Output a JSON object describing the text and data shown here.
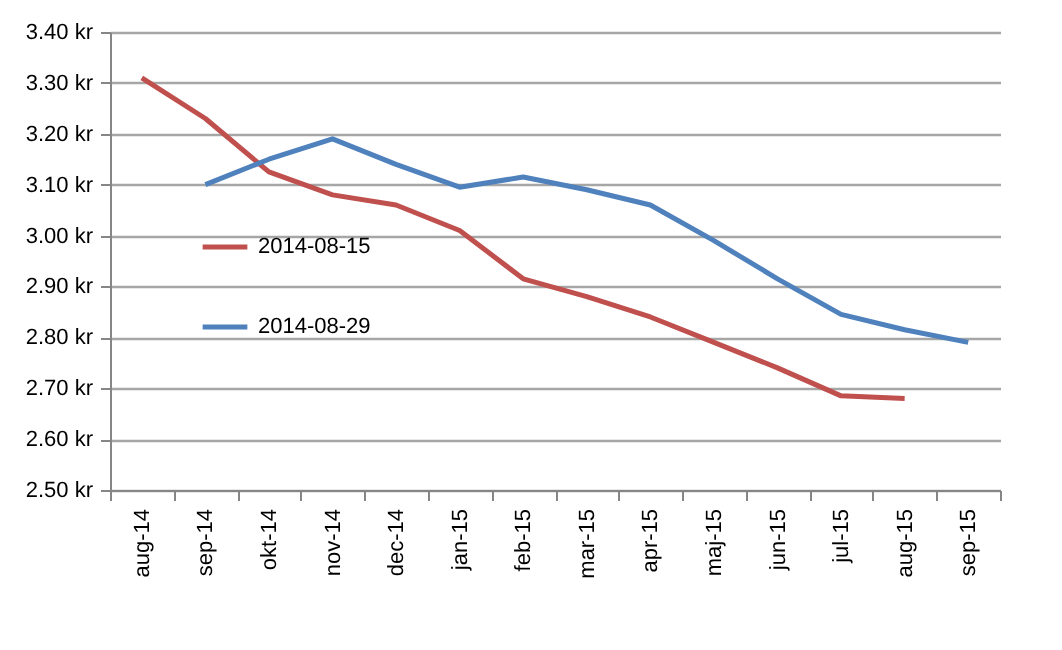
{
  "chart_data": {
    "type": "line",
    "categories": [
      "aug-14",
      "sep-14",
      "okt-14",
      "nov-14",
      "dec-14",
      "jan-15",
      "feb-15",
      "mar-15",
      "apr-15",
      "maj-15",
      "jun-15",
      "jul-15",
      "aug-15",
      "sep-15"
    ],
    "series": [
      {
        "name": "2014-08-15",
        "color": "#c0504d",
        "values": [
          3.31,
          3.23,
          3.125,
          3.08,
          3.06,
          3.01,
          2.915,
          2.88,
          2.84,
          2.79,
          2.74,
          2.685,
          2.68,
          null
        ]
      },
      {
        "name": "2014-08-29",
        "color": "#4f81bd",
        "values": [
          null,
          3.1,
          3.15,
          3.19,
          3.14,
          3.095,
          3.115,
          3.09,
          3.06,
          2.99,
          2.915,
          2.845,
          2.815,
          2.79
        ]
      }
    ],
    "ylim": [
      2.5,
      3.4
    ],
    "yticks": [
      {
        "value": 2.5,
        "label": "2.50 kr"
      },
      {
        "value": 2.6,
        "label": "2.60 kr"
      },
      {
        "value": 2.7,
        "label": "2.70 kr"
      },
      {
        "value": 2.8,
        "label": "2.80 kr"
      },
      {
        "value": 2.9,
        "label": "2.90 kr"
      },
      {
        "value": 3.0,
        "label": "3.00 kr"
      },
      {
        "value": 3.1,
        "label": "3.10 kr"
      },
      {
        "value": 3.2,
        "label": "3.20 kr"
      },
      {
        "value": 3.3,
        "label": "3.30 kr"
      },
      {
        "value": 3.4,
        "label": "3.40 kr"
      }
    ],
    "grid": "y",
    "legend": "left",
    "line_style": "solid"
  }
}
